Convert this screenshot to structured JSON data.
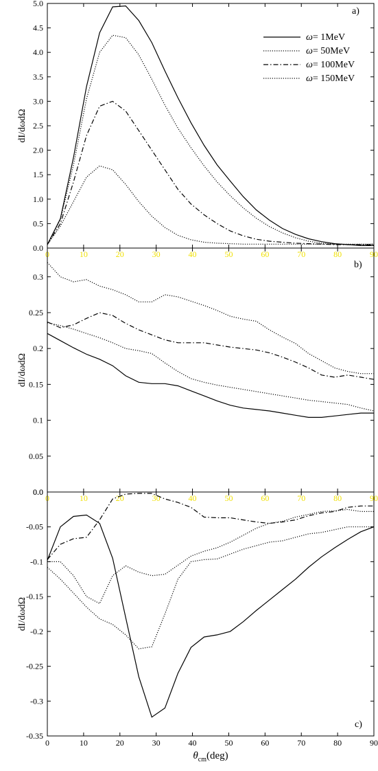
{
  "chart_data": [
    {
      "type": "line",
      "panel_label": "a)",
      "ylabel": "dI/dωdΩ",
      "xlim": [
        0,
        90
      ],
      "ylim": [
        0,
        5
      ],
      "x_ticks": [
        "0",
        "10",
        "20",
        "30",
        "40",
        "50",
        "60",
        "70",
        "80",
        "90"
      ],
      "y_ticks": [
        "0.0",
        "0.5",
        "1.0",
        "1.5",
        "2.0",
        "2.5",
        "3.0",
        "3.5",
        "4.0",
        "4.5",
        "5.0"
      ],
      "y_tick_values": [
        0,
        0.5,
        1,
        1.5,
        2,
        2.5,
        3,
        3.5,
        4,
        4.5,
        5
      ],
      "legend": [
        {
          "symbol": "ω",
          "label": "= 1MeV",
          "style": "solid"
        },
        {
          "symbol": "ω",
          "label": "= 50MeV",
          "style": "dotted"
        },
        {
          "symbol": "ω",
          "label": "= 100MeV",
          "style": "dashdot"
        },
        {
          "symbol": "ω",
          "label": "= 150MeV",
          "style": "dotted"
        }
      ],
      "series": [
        {
          "style": "solid",
          "x": [
            0,
            3.6,
            7.2,
            10.8,
            14.4,
            18,
            21.6,
            25.2,
            28.8,
            32.4,
            36,
            39.6,
            43.2,
            46.8,
            50.4,
            54,
            57.6,
            61.2,
            64.8,
            68.4,
            72,
            75.6,
            79.2,
            82.8,
            86.4,
            90
          ],
          "y": [
            0.07,
            0.6,
            1.85,
            3.3,
            4.4,
            4.93,
            4.95,
            4.65,
            4.2,
            3.62,
            3.07,
            2.56,
            2.1,
            1.7,
            1.37,
            1.05,
            0.78,
            0.57,
            0.4,
            0.28,
            0.19,
            0.13,
            0.09,
            0.07,
            0.05,
            0.05
          ]
        },
        {
          "style": "dotted",
          "x": [
            0,
            3.6,
            7.2,
            10.8,
            14.4,
            18,
            21.6,
            25.2,
            28.8,
            32.4,
            36,
            39.6,
            43.2,
            46.8,
            50.4,
            54,
            57.6,
            61.2,
            64.8,
            68.4,
            72,
            75.6,
            79.2,
            82.8,
            86.4,
            90
          ],
          "y": [
            0.07,
            0.58,
            1.7,
            3.05,
            4.0,
            4.35,
            4.3,
            3.95,
            3.45,
            2.92,
            2.45,
            2.05,
            1.68,
            1.35,
            1.07,
            0.82,
            0.61,
            0.44,
            0.31,
            0.21,
            0.14,
            0.1,
            0.08,
            0.07,
            0.07,
            0.08
          ]
        },
        {
          "style": "dashdot",
          "x": [
            0,
            3.6,
            7.2,
            10.8,
            14.4,
            18,
            21.6,
            25.2,
            28.8,
            32.4,
            36,
            39.6,
            43.2,
            46.8,
            50.4,
            54,
            57.6,
            61.2,
            64.8,
            68.4,
            72,
            75.6,
            79.2,
            82.8,
            86.4,
            90
          ],
          "y": [
            0.07,
            0.5,
            1.35,
            2.3,
            2.9,
            3.0,
            2.8,
            2.4,
            2.0,
            1.6,
            1.2,
            0.9,
            0.68,
            0.5,
            0.35,
            0.25,
            0.18,
            0.14,
            0.12,
            0.1,
            0.09,
            0.08,
            0.07,
            0.07,
            0.07,
            0.06
          ]
        },
        {
          "style": "dotted",
          "x": [
            0,
            3.6,
            7.2,
            10.8,
            14.4,
            18,
            21.6,
            25.2,
            28.8,
            32.4,
            36,
            39.6,
            43.2,
            46.8,
            50.4,
            54,
            57.6,
            61.2,
            64.8,
            68.4,
            72,
            75.6,
            79.2,
            82.8,
            86.4,
            90
          ],
          "y": [
            0.07,
            0.45,
            0.95,
            1.45,
            1.68,
            1.6,
            1.3,
            0.95,
            0.65,
            0.42,
            0.26,
            0.17,
            0.12,
            0.1,
            0.09,
            0.08,
            0.08,
            0.08,
            0.08,
            0.08,
            0.08,
            0.08,
            0.08,
            0.08,
            0.08,
            0.08
          ]
        }
      ]
    },
    {
      "type": "line",
      "panel_label": "b)",
      "ylabel": "dI/dωdΩ",
      "xlim": [
        0,
        90
      ],
      "ylim": [
        0,
        0.34
      ],
      "x_ticks": [
        "0",
        "10",
        "20",
        "30",
        "40",
        "50",
        "60",
        "70",
        "80",
        "90"
      ],
      "y_ticks": [
        "0.0",
        "0.05",
        "0.1",
        "0.15",
        "0.2",
        "0.25",
        "0.3"
      ],
      "y_tick_values": [
        0,
        0.05,
        0.1,
        0.15,
        0.2,
        0.25,
        0.3
      ],
      "series": [
        {
          "style": "solid",
          "x": [
            0,
            3.6,
            7.2,
            10.8,
            14.4,
            18,
            21.6,
            25.2,
            28.8,
            32.4,
            36,
            39.6,
            43.2,
            46.8,
            50.4,
            54,
            57.6,
            61.2,
            64.8,
            68.4,
            72,
            75.6,
            79.2,
            82.8,
            86.4,
            90
          ],
          "y": [
            0.221,
            0.211,
            0.201,
            0.192,
            0.185,
            0.176,
            0.162,
            0.153,
            0.151,
            0.151,
            0.148,
            0.141,
            0.134,
            0.127,
            0.121,
            0.117,
            0.115,
            0.113,
            0.11,
            0.107,
            0.104,
            0.104,
            0.106,
            0.108,
            0.11,
            0.11
          ]
        },
        {
          "style": "dotted",
          "x": [
            0,
            3.6,
            7.2,
            10.8,
            14.4,
            18,
            21.6,
            25.2,
            28.8,
            32.4,
            36,
            39.6,
            43.2,
            46.8,
            50.4,
            54,
            57.6,
            61.2,
            64.8,
            68.4,
            72,
            75.6,
            79.2,
            82.8,
            86.4,
            90
          ],
          "y": [
            0.236,
            0.232,
            0.227,
            0.221,
            0.215,
            0.208,
            0.2,
            0.197,
            0.193,
            0.18,
            0.168,
            0.158,
            0.153,
            0.149,
            0.146,
            0.143,
            0.14,
            0.137,
            0.134,
            0.131,
            0.128,
            0.126,
            0.124,
            0.122,
            0.117,
            0.113
          ]
        },
        {
          "style": "dashdot",
          "x": [
            0,
            3.6,
            7.2,
            10.8,
            14.4,
            18,
            21.6,
            25.2,
            28.8,
            32.4,
            36,
            39.6,
            43.2,
            46.8,
            50.4,
            54,
            57.6,
            61.2,
            64.8,
            68.4,
            72,
            75.6,
            79.2,
            82.8,
            86.4,
            90
          ],
          "y": [
            0.237,
            0.229,
            0.233,
            0.242,
            0.25,
            0.246,
            0.235,
            0.226,
            0.219,
            0.212,
            0.208,
            0.208,
            0.208,
            0.205,
            0.202,
            0.2,
            0.198,
            0.194,
            0.188,
            0.181,
            0.173,
            0.163,
            0.16,
            0.163,
            0.16,
            0.157
          ]
        },
        {
          "style": "dotted",
          "x": [
            0,
            3.6,
            7.2,
            10.8,
            14.4,
            18,
            21.6,
            25.2,
            28.8,
            32.4,
            36,
            39.6,
            43.2,
            46.8,
            50.4,
            54,
            57.6,
            61.2,
            64.8,
            68.4,
            72,
            75.6,
            79.2,
            82.8,
            86.4,
            90
          ],
          "y": [
            0.32,
            0.3,
            0.293,
            0.296,
            0.287,
            0.282,
            0.275,
            0.265,
            0.265,
            0.275,
            0.272,
            0.266,
            0.26,
            0.253,
            0.245,
            0.241,
            0.238,
            0.226,
            0.216,
            0.207,
            0.193,
            0.183,
            0.173,
            0.168,
            0.165,
            0.165
          ]
        }
      ]
    },
    {
      "type": "line",
      "panel_label": "c)",
      "ylabel": "dI/dωdΩ",
      "xlabel": "θ",
      "xlabel_sub": "cm",
      "xlabel_unit": "(deg)",
      "xlim": [
        0,
        90
      ],
      "ylim": [
        -0.35,
        0
      ],
      "x_ticks": [
        "0",
        "10",
        "20",
        "30",
        "40",
        "50",
        "60",
        "70",
        "80",
        "90"
      ],
      "y_ticks": [
        "0.0",
        "-0.05",
        "-0.1",
        "-0.15",
        "-0.2",
        "-0.25",
        "-0.3",
        "-0.35"
      ],
      "y_tick_values": [
        0,
        -0.05,
        -0.1,
        -0.15,
        -0.2,
        -0.25,
        -0.3,
        -0.35
      ],
      "series": [
        {
          "style": "solid",
          "x": [
            0,
            3.6,
            7.2,
            10.8,
            14.4,
            18,
            21.6,
            25.2,
            28.8,
            32.4,
            36,
            39.6,
            43.2,
            46.8,
            50.4,
            54,
            57.6,
            61.2,
            64.8,
            68.4,
            72,
            75.6,
            79.2,
            82.8,
            86.4,
            90
          ],
          "y": [
            -0.098,
            -0.05,
            -0.035,
            -0.033,
            -0.045,
            -0.095,
            -0.18,
            -0.265,
            -0.323,
            -0.31,
            -0.26,
            -0.223,
            -0.208,
            -0.205,
            -0.2,
            -0.186,
            -0.17,
            -0.155,
            -0.14,
            -0.125,
            -0.108,
            -0.093,
            -0.08,
            -0.068,
            -0.057,
            -0.05
          ]
        },
        {
          "style": "dotted",
          "x": [
            0,
            3.6,
            7.2,
            10.8,
            14.4,
            18,
            21.6,
            25.2,
            28.8,
            32.4,
            36,
            39.6,
            43.2,
            46.8,
            50.4,
            54,
            57.6,
            61.2,
            64.8,
            68.4,
            72,
            75.6,
            79.2,
            82.8,
            86.4,
            90
          ],
          "y": [
            -0.1,
            -0.1,
            -0.12,
            -0.15,
            -0.16,
            -0.12,
            -0.106,
            -0.115,
            -0.12,
            -0.118,
            -0.105,
            -0.092,
            -0.085,
            -0.08,
            -0.072,
            -0.062,
            -0.052,
            -0.045,
            -0.042,
            -0.036,
            -0.032,
            -0.028,
            -0.027,
            -0.025,
            -0.028,
            -0.028
          ]
        },
        {
          "style": "dashdot",
          "x": [
            0,
            3.6,
            7.2,
            10.8,
            14.4,
            18,
            21.6,
            25.2,
            28.8,
            32.4,
            36,
            39.6,
            43.2,
            46.8,
            50.4,
            54,
            57.6,
            61.2,
            64.8,
            68.4,
            72,
            75.6,
            79.2,
            82.8,
            86.4,
            90
          ],
          "y": [
            -0.097,
            -0.075,
            -0.067,
            -0.065,
            -0.04,
            -0.01,
            -0.003,
            -0.002,
            -0.002,
            -0.01,
            -0.015,
            -0.022,
            -0.036,
            -0.037,
            -0.037,
            -0.04,
            -0.043,
            -0.045,
            -0.043,
            -0.04,
            -0.034,
            -0.03,
            -0.028,
            -0.022,
            -0.02,
            -0.02
          ]
        },
        {
          "style": "dotted",
          "x": [
            0,
            3.6,
            7.2,
            10.8,
            14.4,
            18,
            21.6,
            25.2,
            28.8,
            32.4,
            36,
            39.6,
            43.2,
            46.8,
            50.4,
            54,
            57.6,
            61.2,
            64.8,
            68.4,
            72,
            75.6,
            79.2,
            82.8,
            86.4,
            90
          ],
          "y": [
            -0.108,
            -0.125,
            -0.145,
            -0.165,
            -0.182,
            -0.19,
            -0.205,
            -0.225,
            -0.222,
            -0.175,
            -0.125,
            -0.1,
            -0.097,
            -0.096,
            -0.089,
            -0.082,
            -0.077,
            -0.072,
            -0.07,
            -0.065,
            -0.06,
            -0.058,
            -0.054,
            -0.05,
            -0.05,
            -0.05
          ]
        }
      ]
    }
  ]
}
